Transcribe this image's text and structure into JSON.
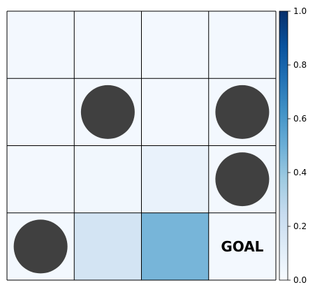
{
  "grid": {
    "rows": 4,
    "cols": 4,
    "values": [
      [
        0.02,
        0.02,
        0.02,
        0.02
      ],
      [
        0.02,
        0.02,
        0.02,
        0.02
      ],
      [
        0.02,
        0.03,
        0.07,
        0.02
      ],
      [
        0.02,
        0.18,
        0.47,
        0.02
      ]
    ],
    "obstacles": [
      {
        "row": 1,
        "col": 1
      },
      {
        "row": 1,
        "col": 3
      },
      {
        "row": 2,
        "col": 3
      },
      {
        "row": 3,
        "col": 0
      }
    ],
    "goal": {
      "row": 3,
      "col": 3,
      "label": "GOAL"
    },
    "obstacle_color": "#404040",
    "line_color": "#000000"
  },
  "colorbar": {
    "min": 0.0,
    "max": 1.0,
    "colormap": "Blues",
    "ticks": [
      "0.0",
      "0.2",
      "0.4",
      "0.6",
      "0.8",
      "1.0"
    ]
  }
}
